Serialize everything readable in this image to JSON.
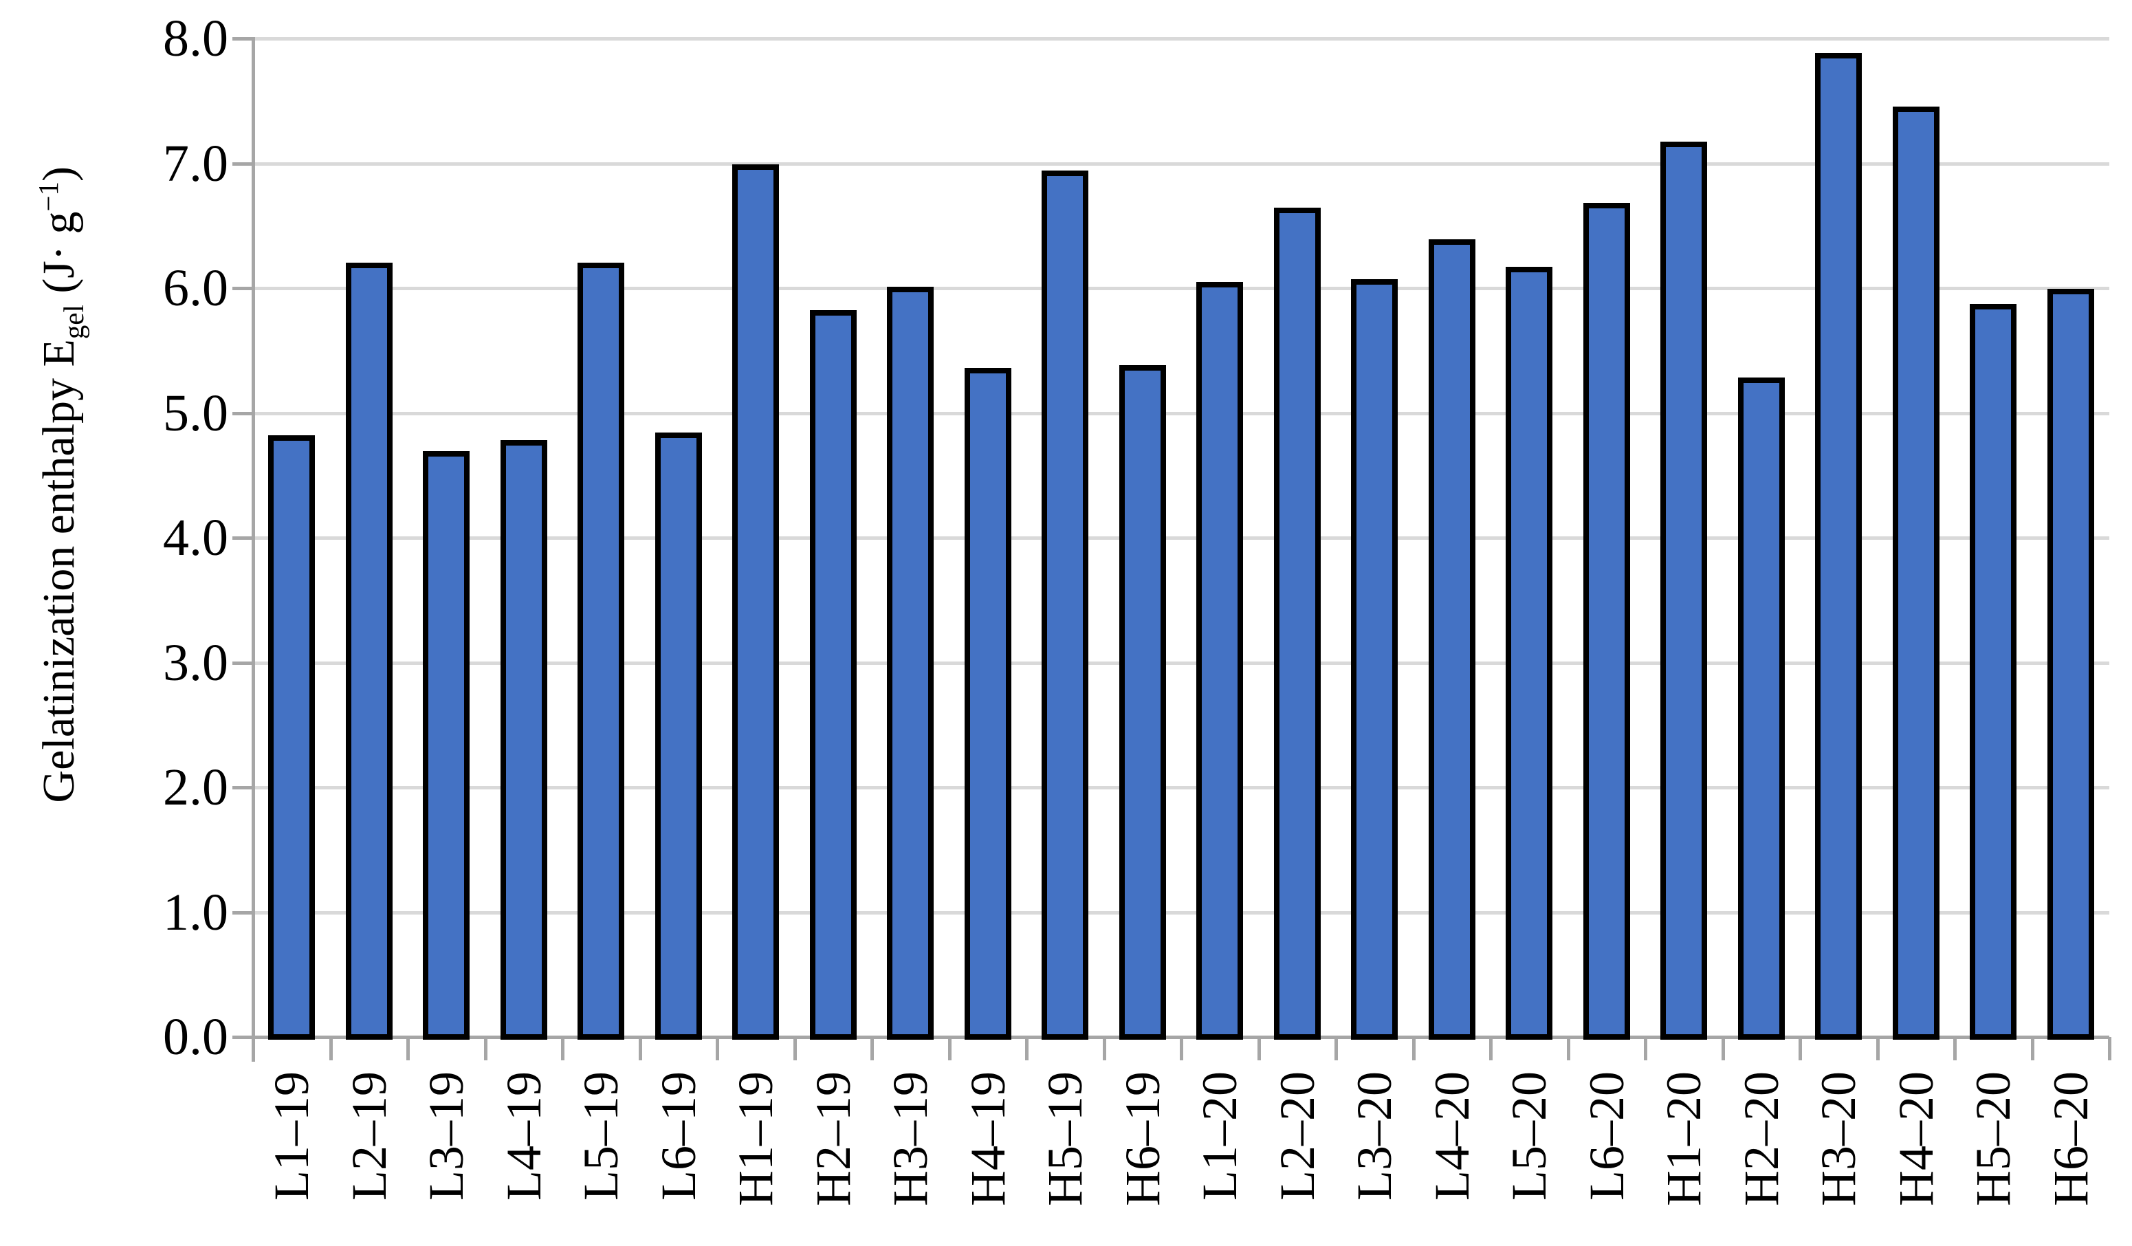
{
  "figure": {
    "background": "#FFFFFF",
    "bar_fill_color": "#4472C4",
    "bar_border_color": "#000000",
    "gridline_color": "#D9D9D9",
    "axis_color": "#A6A6A6",
    "text_color": "#000000"
  },
  "y_axis": {
    "min": 0,
    "max": 8,
    "step": 1,
    "tick_labels": [
      "0.0",
      "1.0",
      "2.0",
      "3.0",
      "4.0",
      "5.0",
      "6.0",
      "7.0",
      "8.0"
    ],
    "title_parts": {
      "prefix": "Gelatinization enthalpy E",
      "subscript": "gel",
      "mid": " (J· g",
      "superscript": "−1",
      "suffix": ")"
    }
  },
  "chart_data": {
    "type": "bar",
    "title": "",
    "xlabel": "",
    "ylabel": "Gelatinization enthalpy Egel (J·g−1)",
    "ylim": [
      0,
      8
    ],
    "grid": true,
    "legend": false,
    "bar_color": "#4472C4",
    "categories": [
      "L1–19",
      "L2–19",
      "L3–19",
      "L4–19",
      "L5–19",
      "L6–19",
      "H1–19",
      "H2–19",
      "H3–19",
      "H4–19",
      "H5–19",
      "H6–19",
      "L1–20",
      "L2–20",
      "L3–20",
      "L4–20",
      "L5–20",
      "L6–20",
      "H1–20",
      "H2–20",
      "H3–20",
      "H4–20",
      "H5–20",
      "H6–20"
    ],
    "values": [
      4.8,
      6.18,
      4.67,
      4.76,
      6.18,
      4.82,
      6.97,
      5.8,
      5.99,
      5.34,
      6.92,
      5.36,
      6.03,
      6.62,
      6.05,
      6.37,
      6.15,
      6.66,
      7.15,
      5.26,
      7.86,
      7.43,
      5.85,
      5.97
    ]
  }
}
